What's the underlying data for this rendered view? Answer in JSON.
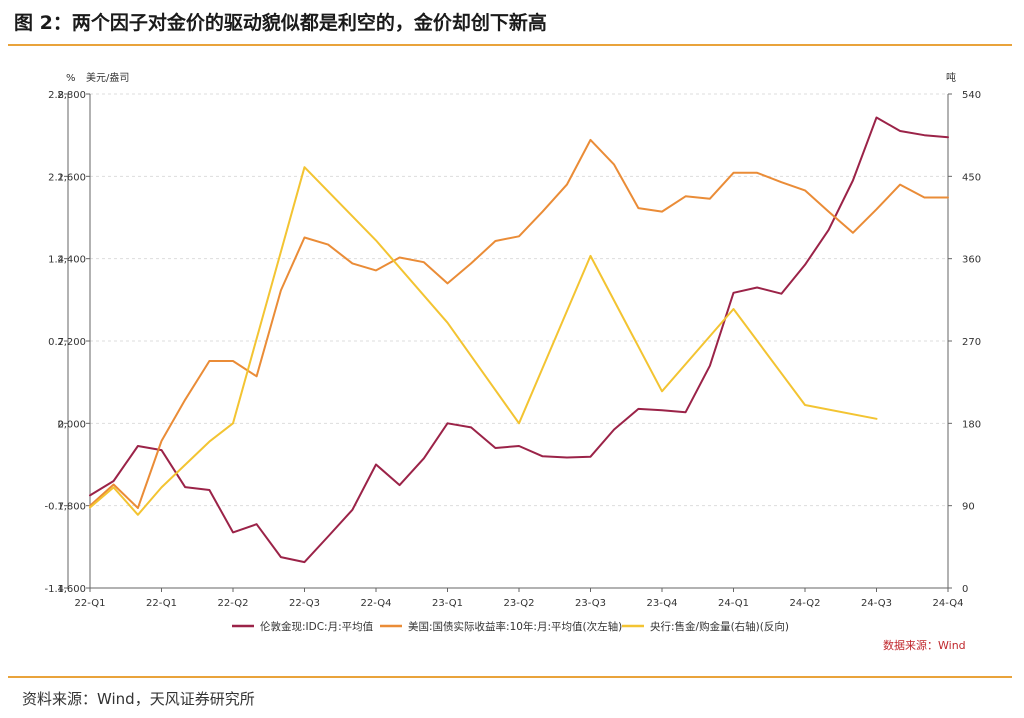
{
  "figure": {
    "title": "图 2：两个因子对金价的驱动貌似都是利空的，金价却创下新高",
    "source": "资料来源：Wind，天风证券研究所"
  },
  "chart_data": {
    "type": "line",
    "x_ticks": [
      "22-Q1",
      "22-Q1",
      "22-Q2",
      "22-Q3",
      "22-Q4",
      "23-Q1",
      "23-Q2",
      "23-Q3",
      "23-Q4",
      "24-Q1",
      "24-Q2",
      "24-Q3",
      "24-Q4"
    ],
    "axes": {
      "left_outer": {
        "unit": "%",
        "ticks": [
          "2.8",
          "2.1",
          "1.4",
          "0.7",
          "0",
          "-0.7",
          "-1.4"
        ],
        "range": [
          -1.4,
          2.8
        ]
      },
      "left_inner": {
        "unit": "美元/盎司",
        "ticks": [
          "2,800",
          "2,600",
          "2,400",
          "2,200",
          "2,000",
          "1,800",
          "1,600"
        ],
        "range": [
          1600,
          2800
        ]
      },
      "right": {
        "unit": "吨",
        "ticks": [
          "540",
          "450",
          "360",
          "270",
          "180",
          "90",
          "0"
        ],
        "range": [
          0,
          540
        ]
      }
    },
    "series": [
      {
        "name": "伦敦金现:IDC:月:平均值",
        "color": "#9b2348",
        "axis": "left_inner",
        "x": [
          0,
          0.33,
          0.67,
          1,
          1.33,
          1.67,
          2,
          2.33,
          2.67,
          3,
          3.33,
          3.67,
          4,
          4.33,
          4.67,
          5,
          5.33,
          5.67,
          6,
          6.33,
          6.67,
          7,
          7.33,
          7.67,
          8,
          8.33,
          8.67,
          9,
          9.33,
          9.67,
          10,
          10.33,
          10.67,
          11,
          11.33,
          11.67,
          12
        ],
        "values": [
          1825,
          1860,
          1945,
          1935,
          1845,
          1838,
          1735,
          1755,
          1675,
          1663,
          1725,
          1790,
          1900,
          1850,
          1915,
          2000,
          1990,
          1940,
          1945,
          1920,
          1917,
          1919,
          1985,
          2035,
          2032,
          2027,
          2140,
          2317,
          2330,
          2315,
          2385,
          2470,
          2590,
          2743,
          2710,
          2700,
          2695
        ]
      },
      {
        "name": "美国:国债实际收益率:10年:月:平均值(次左轴)",
        "color": "#ea8c37",
        "axis": "left_outer",
        "x": [
          0,
          0.33,
          0.67,
          1,
          1.33,
          1.67,
          2,
          2.33,
          2.67,
          3,
          3.33,
          3.67,
          4,
          4.33,
          4.67,
          5,
          5.33,
          5.67,
          6,
          6.33,
          6.67,
          7,
          7.33,
          7.67,
          8,
          8.33,
          8.67,
          9,
          9.33,
          9.67,
          10,
          10.33,
          10.67,
          11,
          11.33,
          11.67,
          12
        ],
        "values": [
          -0.7,
          -0.52,
          -0.72,
          -0.15,
          0.2,
          0.53,
          0.53,
          0.4,
          1.13,
          1.58,
          1.52,
          1.36,
          1.3,
          1.41,
          1.37,
          1.19,
          1.36,
          1.55,
          1.59,
          1.8,
          2.03,
          2.41,
          2.2,
          1.83,
          1.8,
          1.93,
          1.91,
          2.13,
          2.13,
          2.05,
          1.98,
          1.8,
          1.62,
          1.82,
          2.03,
          1.92,
          1.92
        ]
      },
      {
        "name": "央行:售金/购金量(右轴)(反向)",
        "color": "#f3c432",
        "axis": "right",
        "x": [
          0,
          0.33,
          0.67,
          1,
          1.67,
          2,
          3,
          4,
          5,
          6,
          7,
          8,
          9,
          10,
          11
        ],
        "values": [
          88,
          110,
          80,
          110,
          160,
          180,
          460,
          380,
          290,
          180,
          363,
          215,
          305,
          200,
          185
        ]
      }
    ],
    "legend": [
      {
        "label": "伦敦金现:IDC:月:平均值",
        "color": "#9b2348"
      },
      {
        "label": "美国:国债实际收益率:10年:月:平均值(次左轴)",
        "color": "#ea8c37"
      },
      {
        "label": "央行:售金/购金量(右轴)(反向)",
        "color": "#f3c432"
      }
    ],
    "legend_position": "bottom",
    "data_source_label": "数据来源：Wind",
    "grid": true
  }
}
